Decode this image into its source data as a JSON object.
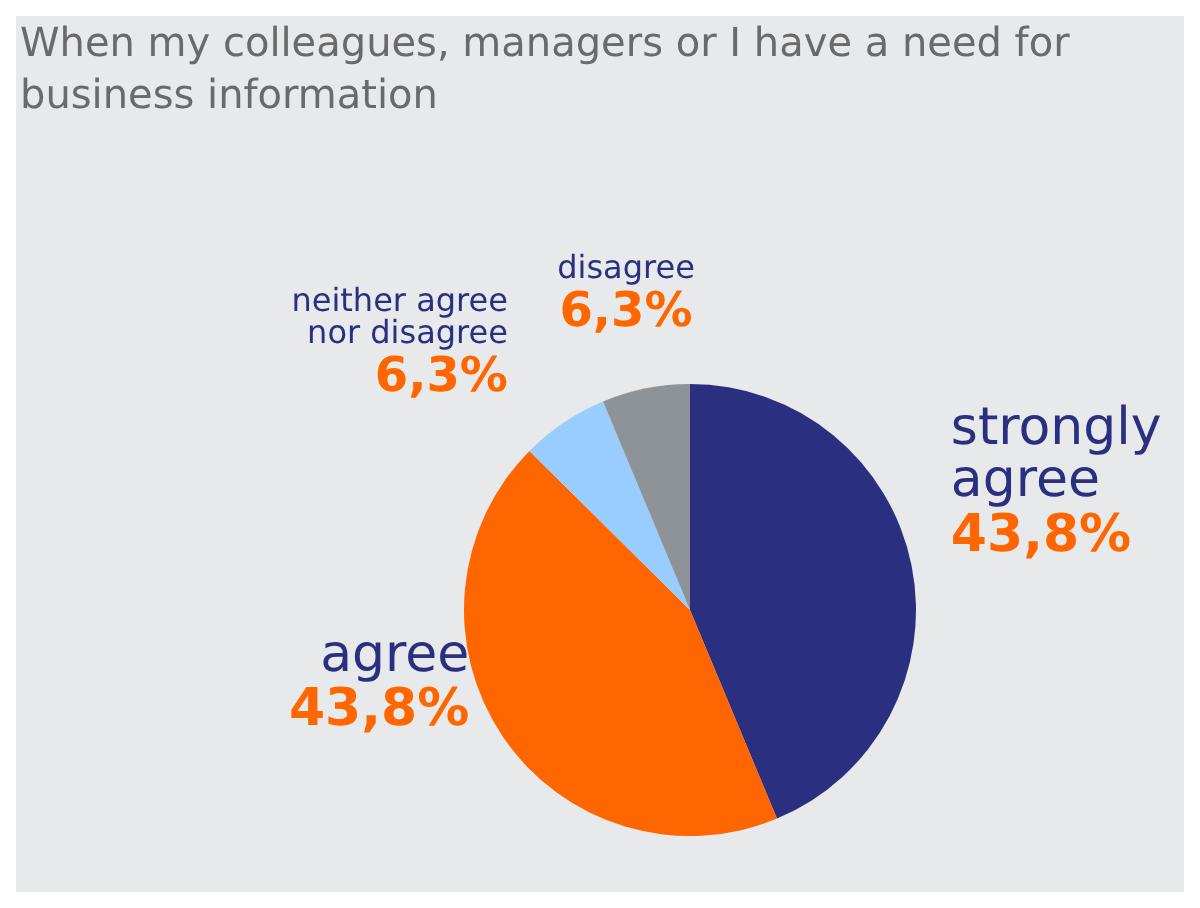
{
  "chart_data": {
    "type": "pie",
    "title": "When my colleagues, managers or I have a need for business information",
    "categories": [
      "strongly agree",
      "agree",
      "neither agree nor disagree",
      "disagree"
    ],
    "values": [
      43.8,
      43.8,
      6.3,
      6.3
    ],
    "value_labels": [
      "43,8%",
      "43,8%",
      "6,3%",
      "6,3%"
    ],
    "colors": [
      "#2b2f80",
      "#ff6600",
      "#99ccff",
      "#8e9398"
    ]
  }
}
